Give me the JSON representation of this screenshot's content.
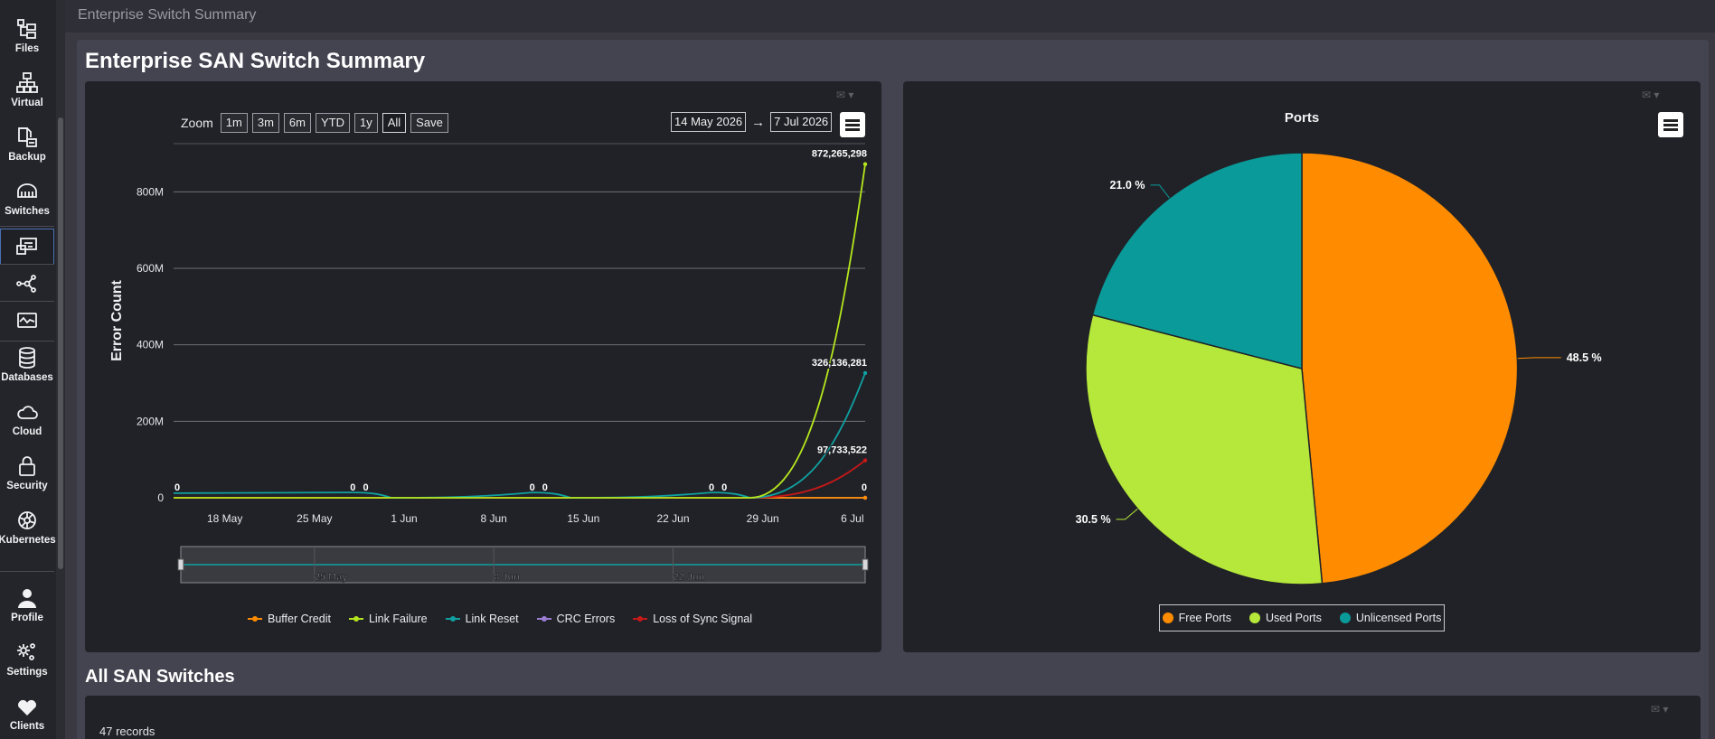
{
  "sidebar": {
    "items": [
      {
        "label": "Files",
        "icon": "files-icon"
      },
      {
        "label": "Virtual",
        "icon": "virtual-icon"
      },
      {
        "label": "Backup",
        "icon": "backup-icon"
      },
      {
        "label": "Switches",
        "icon": "switches-icon"
      },
      {
        "label": "",
        "icon": "monitor-switch-icon"
      },
      {
        "label": "",
        "icon": "topology-icon"
      },
      {
        "label": "",
        "icon": "performance-icon"
      },
      {
        "label": "Databases",
        "icon": "database-icon"
      },
      {
        "label": "Cloud",
        "icon": "cloud-icon"
      },
      {
        "label": "Security",
        "icon": "lock-icon"
      },
      {
        "label": "Kubernetes",
        "icon": "kubernetes-icon"
      },
      {
        "label": "Profile",
        "icon": "user-icon"
      },
      {
        "label": "Settings",
        "icon": "gears-icon"
      },
      {
        "label": "Clients",
        "icon": "heart-icon"
      }
    ]
  },
  "header": {
    "breadcrumb": "Enterprise Switch Summary"
  },
  "page": {
    "title": "Enterprise SAN Switch Summary",
    "section_title": "All SAN Switches",
    "records": "47 records"
  },
  "error_chart": {
    "zoom_label": "Zoom",
    "zoom_buttons": [
      "1m",
      "3m",
      "6m",
      "YTD",
      "1y",
      "All",
      "Save"
    ],
    "zoom_selected": "All",
    "from_date": "14 May 2026",
    "to_date": "7 Jul 2026",
    "arrow": "→",
    "navigator_labels": [
      "25 May",
      "8 Jun",
      "22 Jun"
    ]
  },
  "chart_data": [
    {
      "type": "line",
      "title": "",
      "ylabel": "Error Count",
      "xlabel": "",
      "x_tick_labels": [
        "18 May",
        "25 May",
        "1 Jun",
        "8 Jun",
        "15 Jun",
        "22 Jun",
        "29 Jun",
        "6 Jul"
      ],
      "y_tick_labels": [
        "0",
        "200M",
        "400M",
        "600M",
        "800M"
      ],
      "ylim": [
        0,
        900000000
      ],
      "x_range": [
        "2026-05-14",
        "2026-07-07"
      ],
      "grid": true,
      "legend": "bottom",
      "series": [
        {
          "name": "Buffer Credit",
          "color": "#ff8c00",
          "points": [
            [
              "2026-05-14",
              0
            ],
            [
              "2026-05-28",
              0
            ],
            [
              "2026-06-11",
              0
            ],
            [
              "2026-06-25",
              0
            ],
            [
              "2026-07-07",
              0
            ]
          ]
        },
        {
          "name": "Link Failure",
          "color": "#b5e61d",
          "points": [
            [
              "2026-05-14",
              0
            ],
            [
              "2026-05-28",
              0
            ],
            [
              "2026-06-11",
              0
            ],
            [
              "2026-06-25",
              0
            ],
            [
              "2026-06-28",
              0
            ],
            [
              "2026-07-07",
              872265298
            ]
          ]
        },
        {
          "name": "Link Reset",
          "color": "#10a0a0",
          "points": [
            [
              "2026-05-14",
              12000000
            ],
            [
              "2026-05-28",
              14000000
            ],
            [
              "2026-05-31",
              0
            ],
            [
              "2026-06-11",
              14000000
            ],
            [
              "2026-06-14",
              0
            ],
            [
              "2026-06-25",
              14000000
            ],
            [
              "2026-06-28",
              0
            ],
            [
              "2026-07-07",
              326136281
            ]
          ]
        },
        {
          "name": "CRC Errors",
          "color": "#9b7fd4",
          "points": [
            [
              "2026-05-14",
              0
            ],
            [
              "2026-07-07",
              0
            ]
          ]
        },
        {
          "name": "Loss of Sync Signal",
          "color": "#c81818",
          "points": [
            [
              "2026-05-14",
              0
            ],
            [
              "2026-06-28",
              0
            ],
            [
              "2026-07-07",
              97733522
            ]
          ]
        }
      ],
      "data_labels": [
        {
          "text": "0",
          "x": "2026-05-14",
          "y": 0
        },
        {
          "text": "0",
          "x": "2026-05-28",
          "y": 0
        },
        {
          "text": "0",
          "x": "2026-05-29",
          "y": 0
        },
        {
          "text": "0",
          "x": "2026-06-11",
          "y": 0
        },
        {
          "text": "0",
          "x": "2026-06-12",
          "y": 0
        },
        {
          "text": "0",
          "x": "2026-06-25",
          "y": 0
        },
        {
          "text": "0",
          "x": "2026-06-26",
          "y": 0
        },
        {
          "text": "0",
          "x": "2026-07-07",
          "y": 0
        },
        {
          "text": "872,265,298",
          "x": "2026-07-07",
          "y": 872265298
        },
        {
          "text": "326,136,281",
          "x": "2026-07-07",
          "y": 326136281
        },
        {
          "text": "97,733,522",
          "x": "2026-07-07",
          "y": 97733522
        }
      ]
    },
    {
      "type": "pie",
      "title": "Ports",
      "legend": "bottom",
      "slices": [
        {
          "name": "Free Ports",
          "value": 48.5,
          "label": "48.5 %",
          "color": "#ff8c00"
        },
        {
          "name": "Used Ports",
          "value": 30.5,
          "label": "30.5 %",
          "color": "#b5e83a"
        },
        {
          "name": "Unlicensed Ports",
          "value": 21.0,
          "label": "21.0 %",
          "color": "#0a9a9a"
        }
      ]
    }
  ]
}
